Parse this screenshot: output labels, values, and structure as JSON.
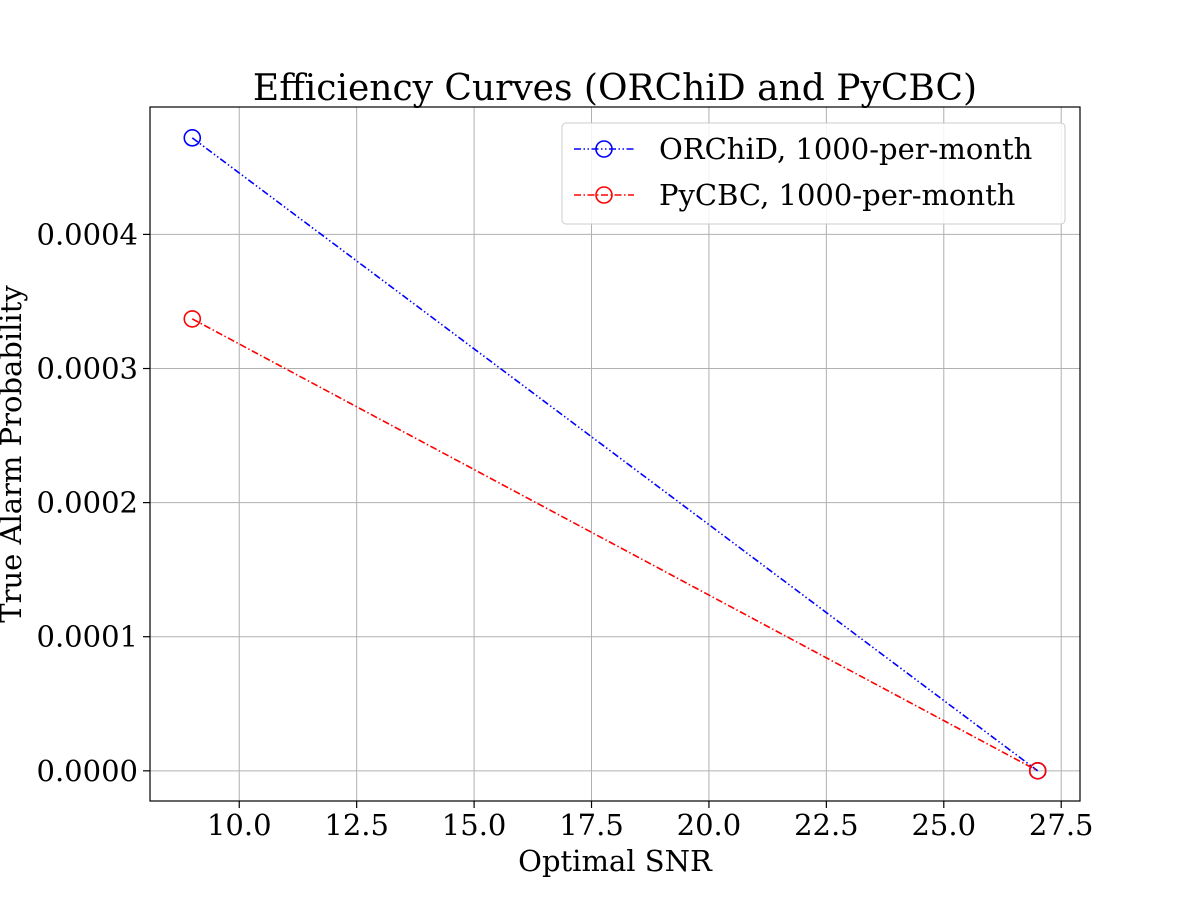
{
  "chart_data": {
    "type": "line",
    "title": "Efficiency Curves (ORChiD and PyCBC)",
    "xlabel": "Optimal SNR",
    "ylabel": "True Alarm Probability",
    "xlim": [
      8.1,
      27.9
    ],
    "ylim": [
      -2.25e-05,
      0.000495
    ],
    "xticks": [
      10.0,
      12.5,
      15.0,
      17.5,
      20.0,
      22.5,
      25.0,
      27.5
    ],
    "xtick_labels": [
      "10.0",
      "12.5",
      "15.0",
      "17.5",
      "20.0",
      "22.5",
      "25.0",
      "27.5"
    ],
    "yticks": [
      0.0,
      0.0001,
      0.0002,
      0.0003,
      0.0004
    ],
    "ytick_labels": [
      "0.0000",
      "0.0001",
      "0.0002",
      "0.0003",
      "0.0004"
    ],
    "grid": true,
    "legend_position": "top-right",
    "series": [
      {
        "name": "ORChiD, 1000-per-month",
        "color": "#0000ff",
        "marker": "open-circle",
        "line_style": "dash-dot-dot",
        "x": [
          9.0,
          27.0
        ],
        "y": [
          0.000472,
          0.0
        ]
      },
      {
        "name": "PyCBC, 1000-per-month",
        "color": "#ff0000",
        "marker": "open-circle",
        "line_style": "dash-dot",
        "x": [
          9.0,
          27.0
        ],
        "y": [
          0.000337,
          0.0
        ]
      }
    ]
  }
}
